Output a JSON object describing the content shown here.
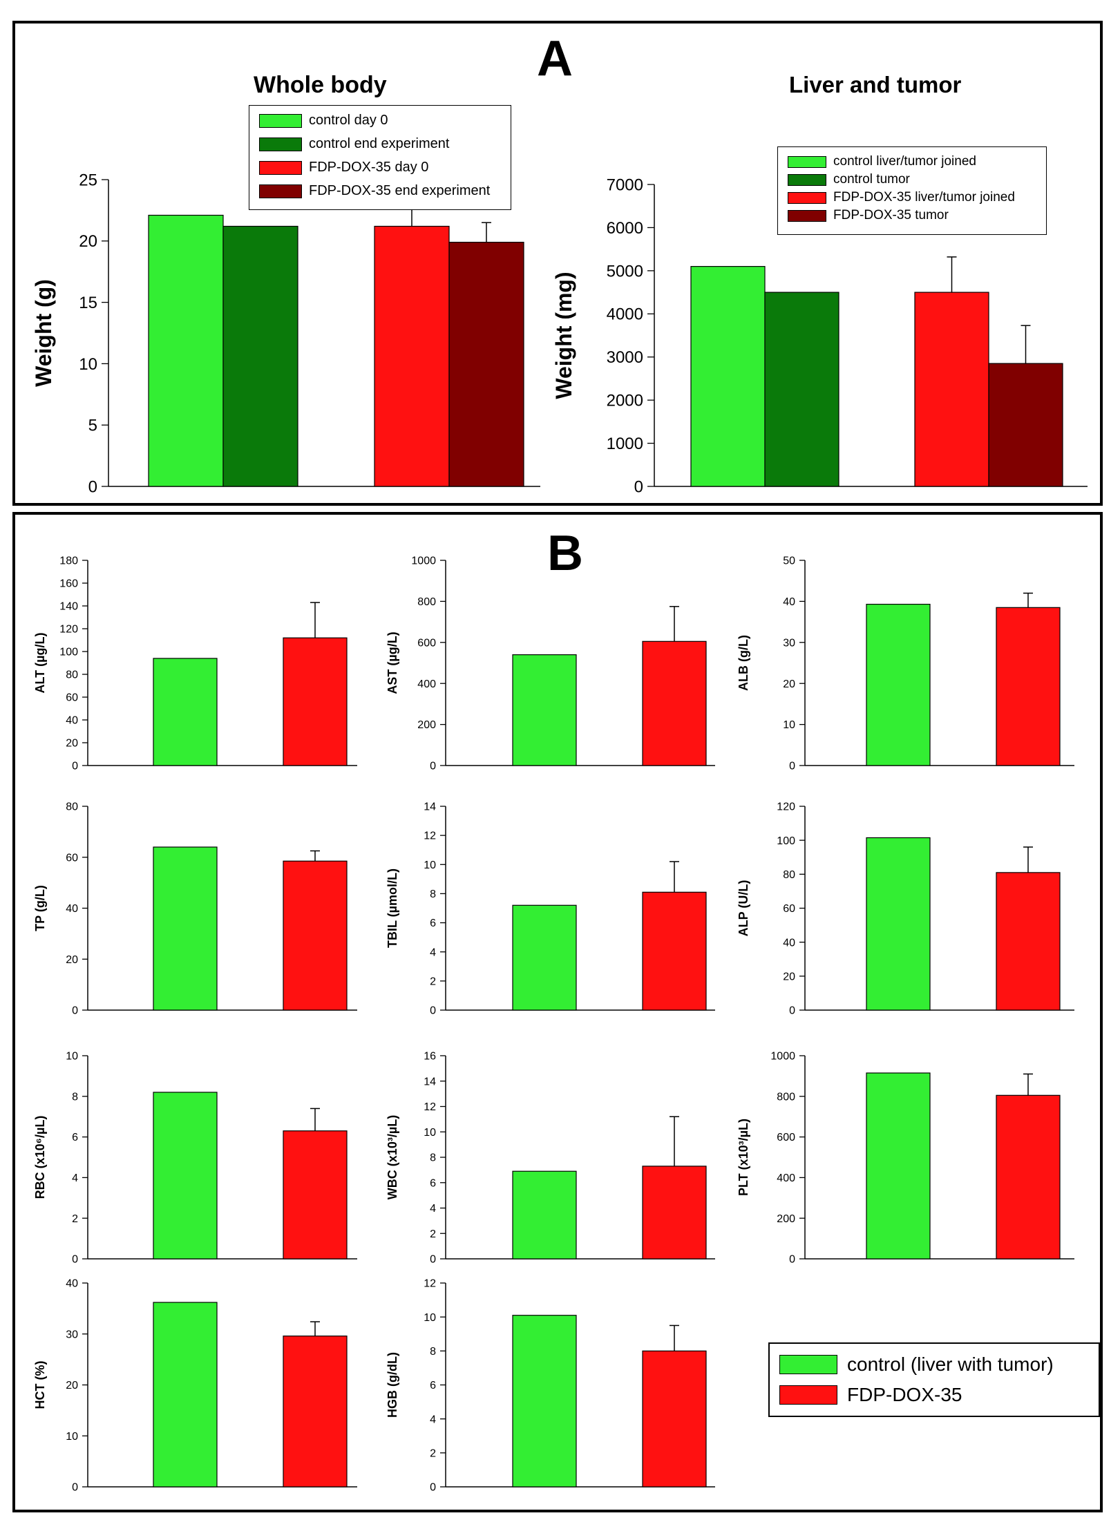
{
  "panel_a": {
    "label": "A",
    "charts": [
      {
        "id": "whole-body",
        "chart_data": {
          "type": "bar",
          "title": "Whole body",
          "xlabel": "",
          "ylabel": "Weight (g)",
          "ylim": [
            0,
            25
          ],
          "yticks": [
            0,
            5,
            10,
            15,
            20,
            25
          ],
          "series": [
            {
              "name": "control day 0",
              "color": "#33ee33",
              "value": 22.1,
              "error": null
            },
            {
              "name": "control end experiment",
              "color": "#0a7a0a",
              "value": 21.2,
              "error": null
            },
            {
              "name": "FDP-DOX-35 day 0",
              "color": "#ff1111",
              "value": 21.2,
              "error": 1.6
            },
            {
              "name": "FDP-DOX-35 end experiment",
              "color": "#800000",
              "value": 19.9,
              "error": 1.6
            }
          ]
        }
      },
      {
        "id": "liver-tumor",
        "chart_data": {
          "type": "bar",
          "title": "Liver and tumor",
          "xlabel": "",
          "ylabel": "Weight (mg)",
          "ylim": [
            0,
            7000
          ],
          "yticks": [
            0,
            1000,
            2000,
            3000,
            4000,
            5000,
            6000,
            7000
          ],
          "series": [
            {
              "name": "control liver/tumor joined",
              "color": "#33ee33",
              "value": 5100,
              "error": null
            },
            {
              "name": "control tumor",
              "color": "#0a7a0a",
              "value": 4500,
              "error": null
            },
            {
              "name": "FDP-DOX-35 liver/tumor joined",
              "color": "#ff1111",
              "value": 4500,
              "error": 820
            },
            {
              "name": "FDP-DOX-35 tumor",
              "color": "#800000",
              "value": 2850,
              "error": 880
            }
          ]
        }
      }
    ]
  },
  "panel_b": {
    "label": "B",
    "legend": [
      {
        "name": "control (liver with tumor)",
        "color": "#33ee33"
      },
      {
        "name": "FDP-DOX-35",
        "color": "#ff1111"
      }
    ],
    "charts": [
      {
        "id": "alt",
        "chart_data": {
          "type": "bar",
          "ylabel": "ALT (µg/L)",
          "ylim": [
            0,
            180
          ],
          "yticks": [
            0,
            20,
            40,
            60,
            80,
            100,
            120,
            140,
            160,
            180
          ],
          "values": [
            94,
            112
          ],
          "errors": [
            null,
            31
          ]
        }
      },
      {
        "id": "ast",
        "chart_data": {
          "type": "bar",
          "ylabel": "AST (µg/L)",
          "ylim": [
            0,
            1000
          ],
          "yticks": [
            0,
            200,
            400,
            600,
            800,
            1000
          ],
          "values": [
            540,
            605
          ],
          "errors": [
            null,
            170
          ]
        }
      },
      {
        "id": "alb",
        "chart_data": {
          "type": "bar",
          "ylabel": "ALB (g/L)",
          "ylim": [
            0,
            50
          ],
          "yticks": [
            0,
            10,
            20,
            30,
            40,
            50
          ],
          "values": [
            39.3,
            38.5
          ],
          "errors": [
            null,
            3.5
          ]
        }
      },
      {
        "id": "tp",
        "chart_data": {
          "type": "bar",
          "ylabel": "TP (g/L)",
          "ylim": [
            0,
            80
          ],
          "yticks": [
            0,
            20,
            40,
            60,
            80
          ],
          "values": [
            64,
            58.5
          ],
          "errors": [
            null,
            4
          ]
        }
      },
      {
        "id": "tbil",
        "chart_data": {
          "type": "bar",
          "ylabel": "TBIL (µmol/L)",
          "ylim": [
            0,
            14
          ],
          "yticks": [
            0,
            2,
            4,
            6,
            8,
            10,
            12,
            14
          ],
          "values": [
            7.2,
            8.1
          ],
          "errors": [
            null,
            2.1
          ]
        }
      },
      {
        "id": "alp",
        "chart_data": {
          "type": "bar",
          "ylabel": "ALP (U/L)",
          "ylim": [
            0,
            120
          ],
          "yticks": [
            0,
            20,
            40,
            60,
            80,
            100,
            120
          ],
          "values": [
            101.5,
            81
          ],
          "errors": [
            null,
            15
          ]
        }
      },
      {
        "id": "rbc",
        "chart_data": {
          "type": "bar",
          "ylabel": "RBC (x10⁶/µL)",
          "ylim": [
            0,
            10
          ],
          "yticks": [
            0,
            2,
            4,
            6,
            8,
            10
          ],
          "values": [
            8.2,
            6.3
          ],
          "errors": [
            null,
            1.1
          ]
        }
      },
      {
        "id": "wbc",
        "chart_data": {
          "type": "bar",
          "ylabel": "WBC (x10³/µL)",
          "ylim": [
            0,
            16
          ],
          "yticks": [
            0,
            2,
            4,
            6,
            8,
            10,
            12,
            14,
            16
          ],
          "values": [
            6.9,
            7.3
          ],
          "errors": [
            null,
            3.9
          ]
        }
      },
      {
        "id": "plt",
        "chart_data": {
          "type": "bar",
          "ylabel": "PLT (x10³/µL)",
          "ylim": [
            0,
            1000
          ],
          "yticks": [
            0,
            200,
            400,
            600,
            800,
            1000
          ],
          "values": [
            915,
            805
          ],
          "errors": [
            null,
            105
          ]
        }
      },
      {
        "id": "hct",
        "chart_data": {
          "type": "bar",
          "ylabel": "HCT (%)",
          "ylim": [
            0,
            40
          ],
          "yticks": [
            0,
            10,
            20,
            30,
            40
          ],
          "values": [
            36.2,
            29.6
          ],
          "errors": [
            null,
            2.8
          ]
        }
      },
      {
        "id": "hgb",
        "chart_data": {
          "type": "bar",
          "ylabel": "HGB (g/dL)",
          "ylim": [
            0,
            12
          ],
          "yticks": [
            0,
            2,
            4,
            6,
            8,
            10,
            12
          ],
          "values": [
            10.1,
            8.0
          ],
          "errors": [
            null,
            1.5
          ]
        }
      }
    ]
  }
}
